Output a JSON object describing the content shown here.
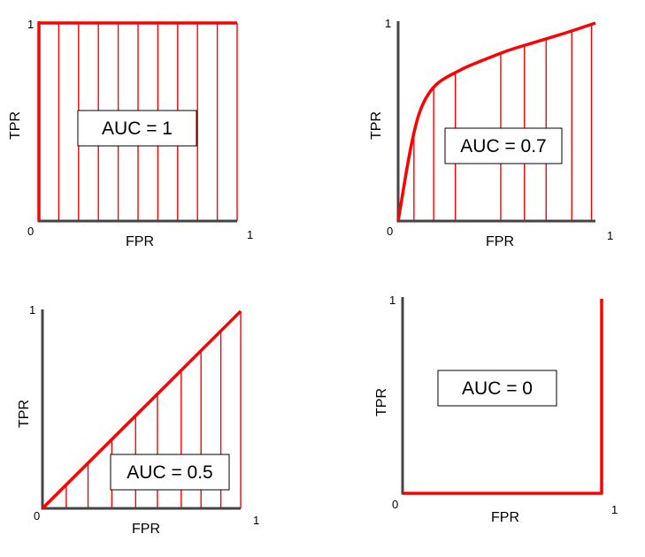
{
  "colors": {
    "curve": "#ff0000",
    "hatch": "#ff0000",
    "axis": "#444444",
    "box_border": "#000000"
  },
  "chart_data": [
    {
      "type": "line",
      "xlabel": "FPR",
      "ylabel": "TPR",
      "xlim": [
        0,
        1
      ],
      "ylim": [
        0,
        1
      ],
      "x_ticks": [
        "0",
        "1"
      ],
      "y_ticks": [
        "1"
      ],
      "annotation": "AUC = 1",
      "points": [
        [
          0,
          0
        ],
        [
          0,
          1
        ],
        [
          1,
          1
        ]
      ],
      "hatch_x": [
        0,
        0.1,
        0.2,
        0.3,
        0.4,
        0.5,
        0.6,
        0.7,
        0.8,
        0.9,
        1.0
      ]
    },
    {
      "type": "line",
      "xlabel": "FPR",
      "ylabel": "TPR",
      "xlim": [
        0,
        1
      ],
      "ylim": [
        0,
        1
      ],
      "x_ticks": [
        "0",
        "1"
      ],
      "y_ticks": [
        "1"
      ],
      "annotation": "AUC = 0.7",
      "points": [
        [
          0,
          0
        ],
        [
          0.02,
          0.12
        ],
        [
          0.05,
          0.3
        ],
        [
          0.08,
          0.45
        ],
        [
          0.11,
          0.56
        ],
        [
          0.15,
          0.64
        ],
        [
          0.2,
          0.7
        ],
        [
          0.27,
          0.74
        ],
        [
          0.35,
          0.78
        ],
        [
          0.45,
          0.82
        ],
        [
          0.55,
          0.86
        ],
        [
          0.65,
          0.89
        ],
        [
          0.75,
          0.92
        ],
        [
          0.85,
          0.95
        ],
        [
          1.0,
          1.0
        ]
      ],
      "hatch_x": [
        0.08,
        0.18,
        0.29,
        0.52,
        0.64,
        0.75,
        0.88,
        0.98
      ]
    },
    {
      "type": "line",
      "xlabel": "FPR",
      "ylabel": "TPR",
      "xlim": [
        0,
        1
      ],
      "ylim": [
        0,
        1
      ],
      "x_ticks": [
        "0",
        "1"
      ],
      "y_ticks": [
        "1"
      ],
      "annotation": "AUC = 0.5",
      "points": [
        [
          0,
          0
        ],
        [
          1,
          1
        ]
      ],
      "hatch_x": [
        0.12,
        0.23,
        0.35,
        0.47,
        0.58,
        0.7,
        0.8,
        0.9,
        1.0
      ]
    },
    {
      "type": "line",
      "xlabel": "FPR",
      "ylabel": "TPR",
      "xlim": [
        0,
        1
      ],
      "ylim": [
        0,
        1
      ],
      "x_ticks": [
        "0",
        "1"
      ],
      "y_ticks": [
        "1"
      ],
      "annotation": "AUC = 0",
      "points": [
        [
          0,
          0
        ],
        [
          1,
          0
        ],
        [
          1,
          1
        ]
      ],
      "hatch_x": []
    }
  ]
}
